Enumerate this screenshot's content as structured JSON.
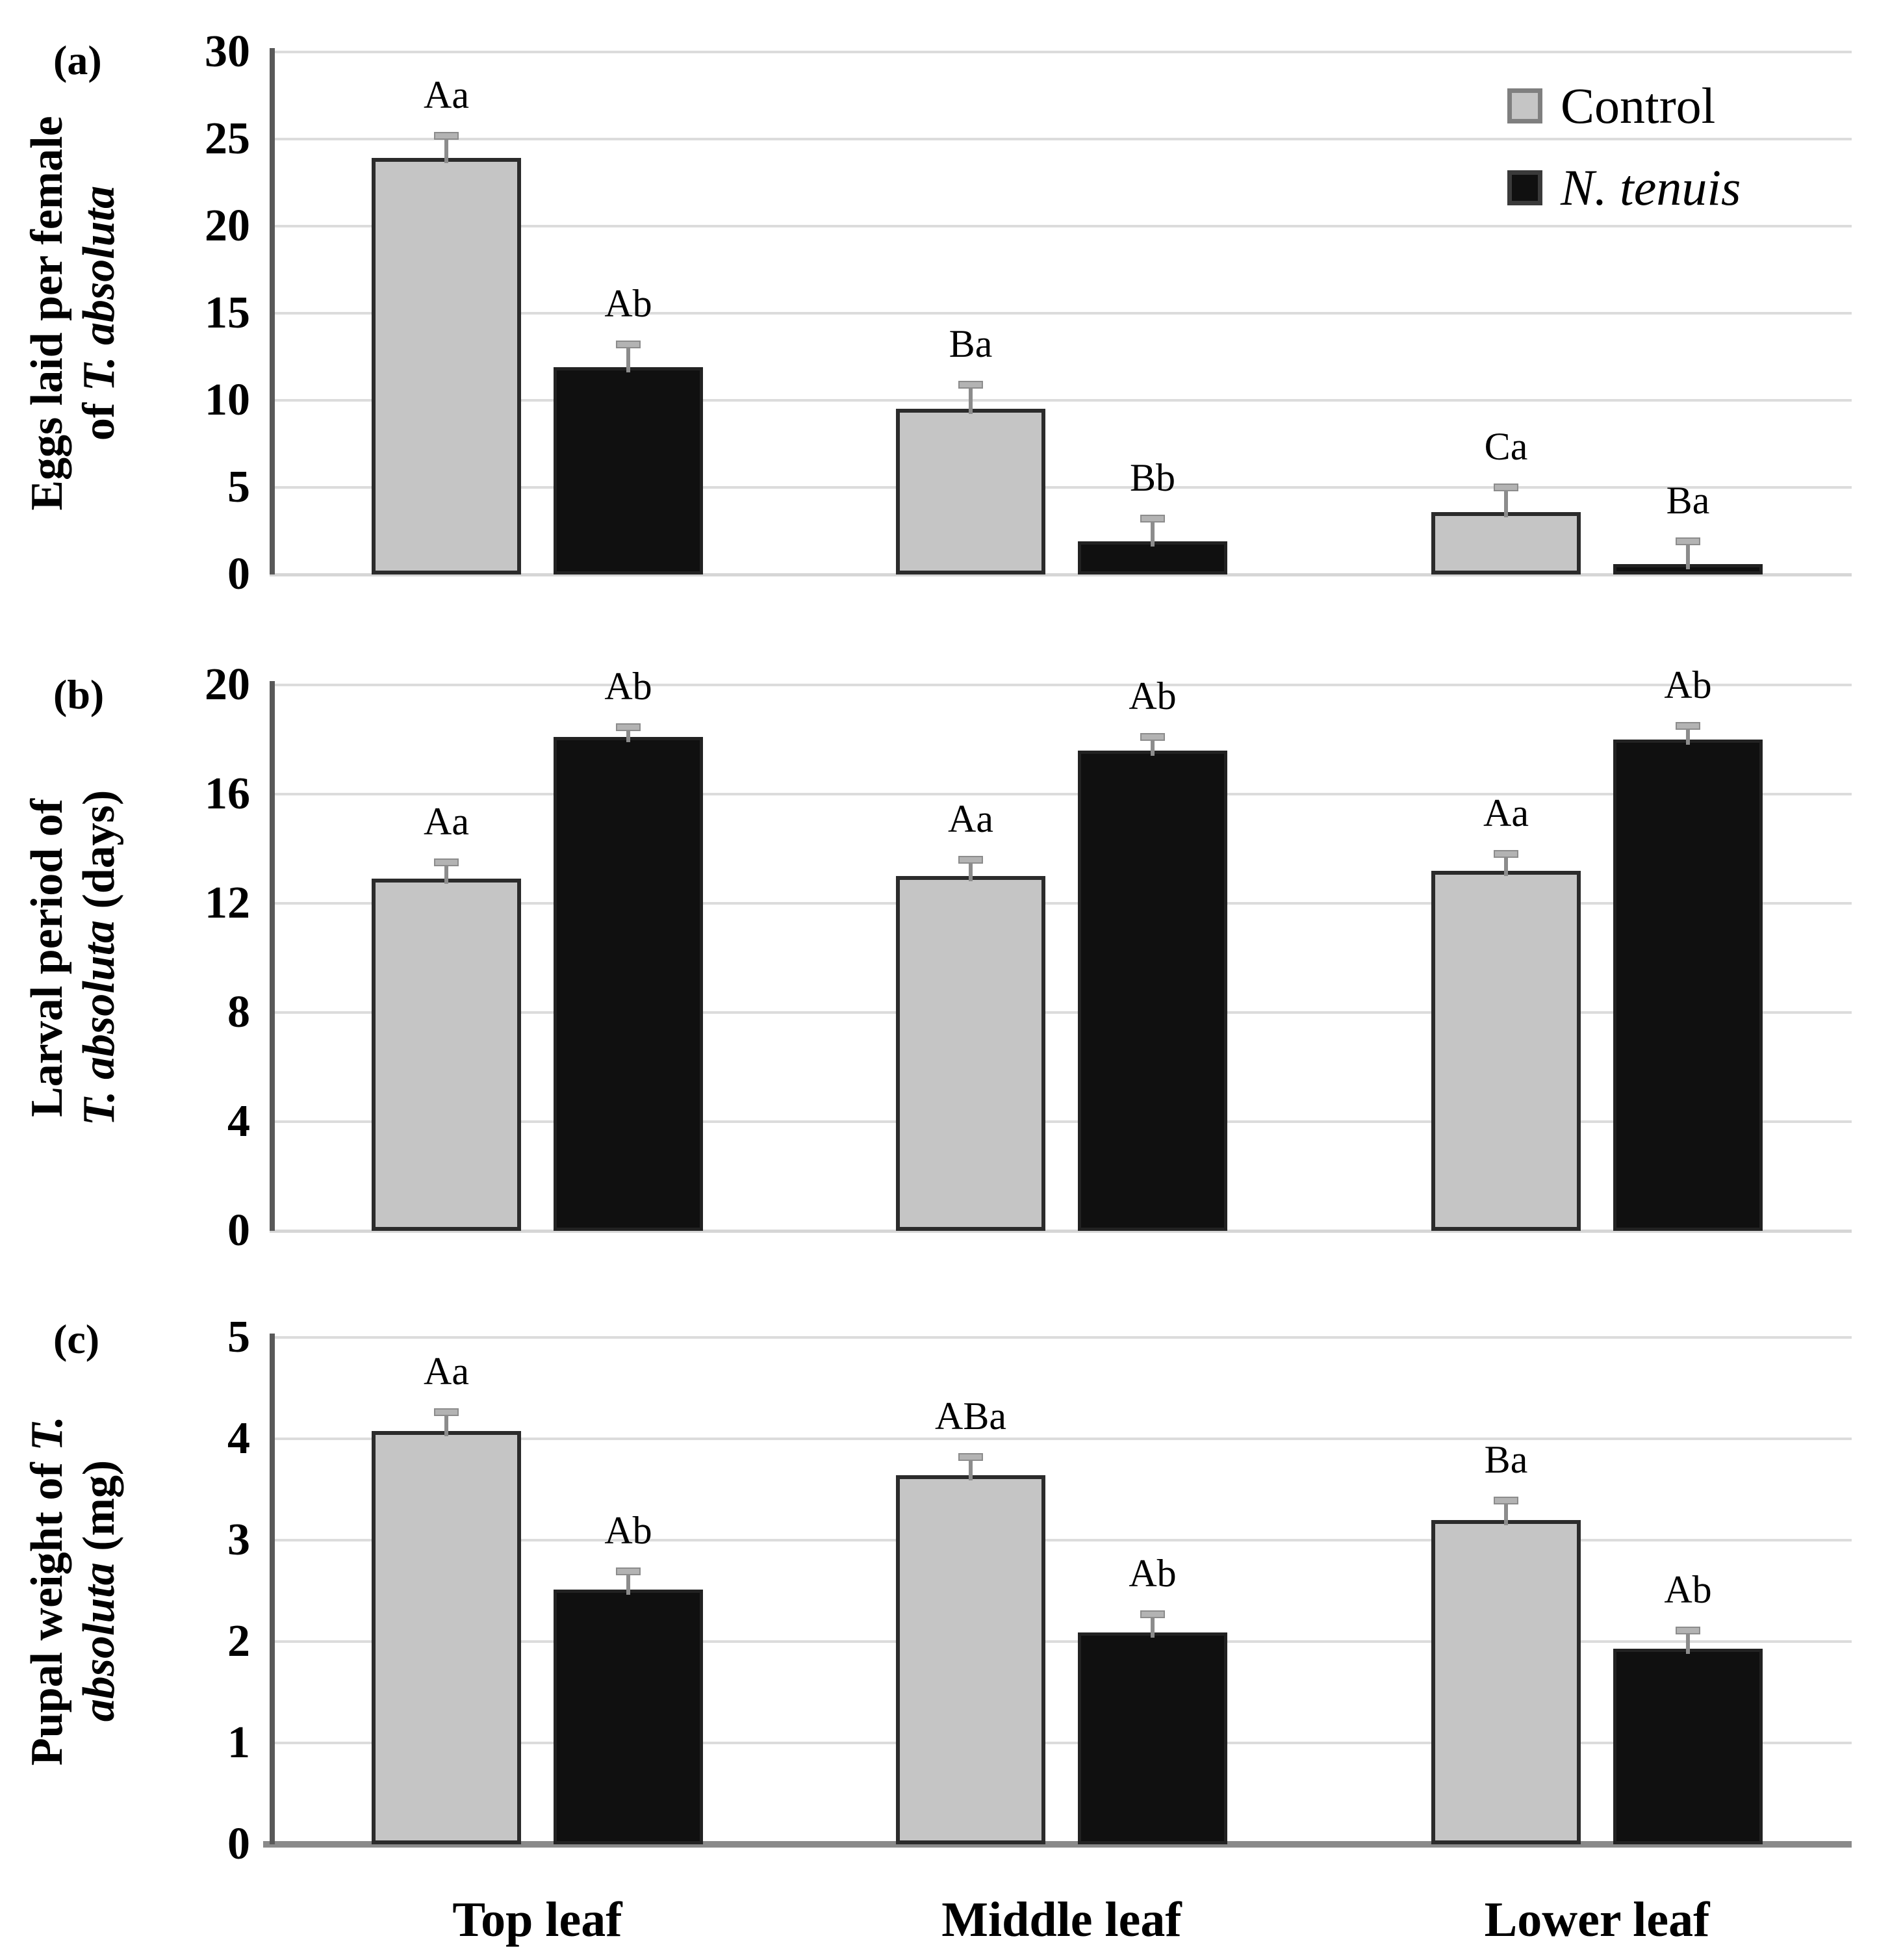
{
  "figure": {
    "legend": {
      "position": "top-right of panel a",
      "items": [
        {
          "label": "Control",
          "swatch": "control",
          "italic": false
        },
        {
          "label": "N. tenuis",
          "swatch": "ntenuis",
          "italic": true
        }
      ]
    },
    "colors": {
      "control_fill": "#c5c5c5",
      "control_border": "#2b2b2b",
      "ntenuis_fill": "#101010",
      "ntenuis_border": "#222222",
      "gridline": "#dcdcdc",
      "axis_line": "#595959",
      "error_bar": "#8c8c8c",
      "error_cap": "#b3b3b3"
    },
    "categories": [
      "Top leaf",
      "Middle leaf",
      "Lower leaf"
    ]
  },
  "chart_data": [
    {
      "id": "a",
      "type": "bar",
      "panel_label": "(a)",
      "ylabel": "Eggs laid per female of T. absoluta",
      "ylabel_lines": [
        [
          {
            "t": "Eggs laid per female",
            "italic": false
          }
        ],
        [
          {
            "t": "of ",
            "italic": false
          },
          {
            "t": "T. absoluta",
            "italic": true
          }
        ]
      ],
      "xlabel": "",
      "categories": [
        "Top leaf",
        "Middle leaf",
        "Lower leaf"
      ],
      "yticks": [
        0,
        5,
        10,
        15,
        20,
        25,
        30
      ],
      "ylim": [
        0,
        30
      ],
      "grid": true,
      "series": [
        {
          "name": "Control",
          "values": [
            23.9,
            9.5,
            3.6
          ],
          "errors": [
            1.3,
            1.4,
            1.4
          ],
          "sig_labels": [
            "Aa",
            "Ba",
            "Ca"
          ]
        },
        {
          "name": "N. tenuis",
          "values": [
            11.9,
            1.9,
            0.6
          ],
          "errors": [
            1.3,
            1.3,
            1.3
          ],
          "sig_labels": [
            "Ab",
            "Bb",
            "Ba"
          ]
        }
      ]
    },
    {
      "id": "b",
      "type": "bar",
      "panel_label": "(b)",
      "ylabel": "Larval period of T. absoluta (days)",
      "ylabel_lines": [
        [
          {
            "t": "Larval period of",
            "italic": false
          }
        ],
        [
          {
            "t": "T. absoluta",
            "italic": true
          },
          {
            "t": " (days)",
            "italic": false
          }
        ]
      ],
      "xlabel": "",
      "categories": [
        "Top leaf",
        "Middle leaf",
        "Lower leaf"
      ],
      "yticks": [
        0,
        4,
        8,
        12,
        16,
        20
      ],
      "ylim": [
        0,
        20
      ],
      "grid": true,
      "series": [
        {
          "name": "Control",
          "values": [
            12.9,
            13.0,
            13.2
          ],
          "errors": [
            0.6,
            0.6,
            0.6
          ],
          "sig_labels": [
            "Aa",
            "Aa",
            "Aa"
          ]
        },
        {
          "name": "N. tenuis",
          "values": [
            18.1,
            17.6,
            18.0
          ],
          "errors": [
            0.35,
            0.5,
            0.5
          ],
          "sig_labels": [
            "Ab",
            "Ab",
            "Ab"
          ]
        }
      ]
    },
    {
      "id": "c",
      "type": "bar",
      "panel_label": "(c)",
      "ylabel": "Pupal weight of T. absoluta (mg)",
      "ylabel_lines": [
        [
          {
            "t": "Pupal weight of ",
            "italic": false
          },
          {
            "t": "T.",
            "italic": true
          }
        ],
        [
          {
            "t": "absoluta",
            "italic": true
          },
          {
            "t": " (mg)",
            "italic": false
          }
        ]
      ],
      "xlabel": "",
      "categories": [
        "Top leaf",
        "Middle leaf",
        "Lower leaf"
      ],
      "yticks": [
        0,
        1,
        2,
        3,
        4,
        5
      ],
      "ylim": [
        0,
        5
      ],
      "grid": true,
      "series": [
        {
          "name": "Control",
          "values": [
            4.08,
            3.64,
            3.2
          ],
          "errors": [
            0.18,
            0.18,
            0.19
          ],
          "sig_labels": [
            "Aa",
            "ABa",
            "Ba"
          ]
        },
        {
          "name": "N. tenuis",
          "values": [
            2.51,
            2.09,
            1.93
          ],
          "errors": [
            0.18,
            0.18,
            0.18
          ],
          "sig_labels": [
            "Ab",
            "Ab",
            "Ab"
          ]
        }
      ]
    }
  ]
}
